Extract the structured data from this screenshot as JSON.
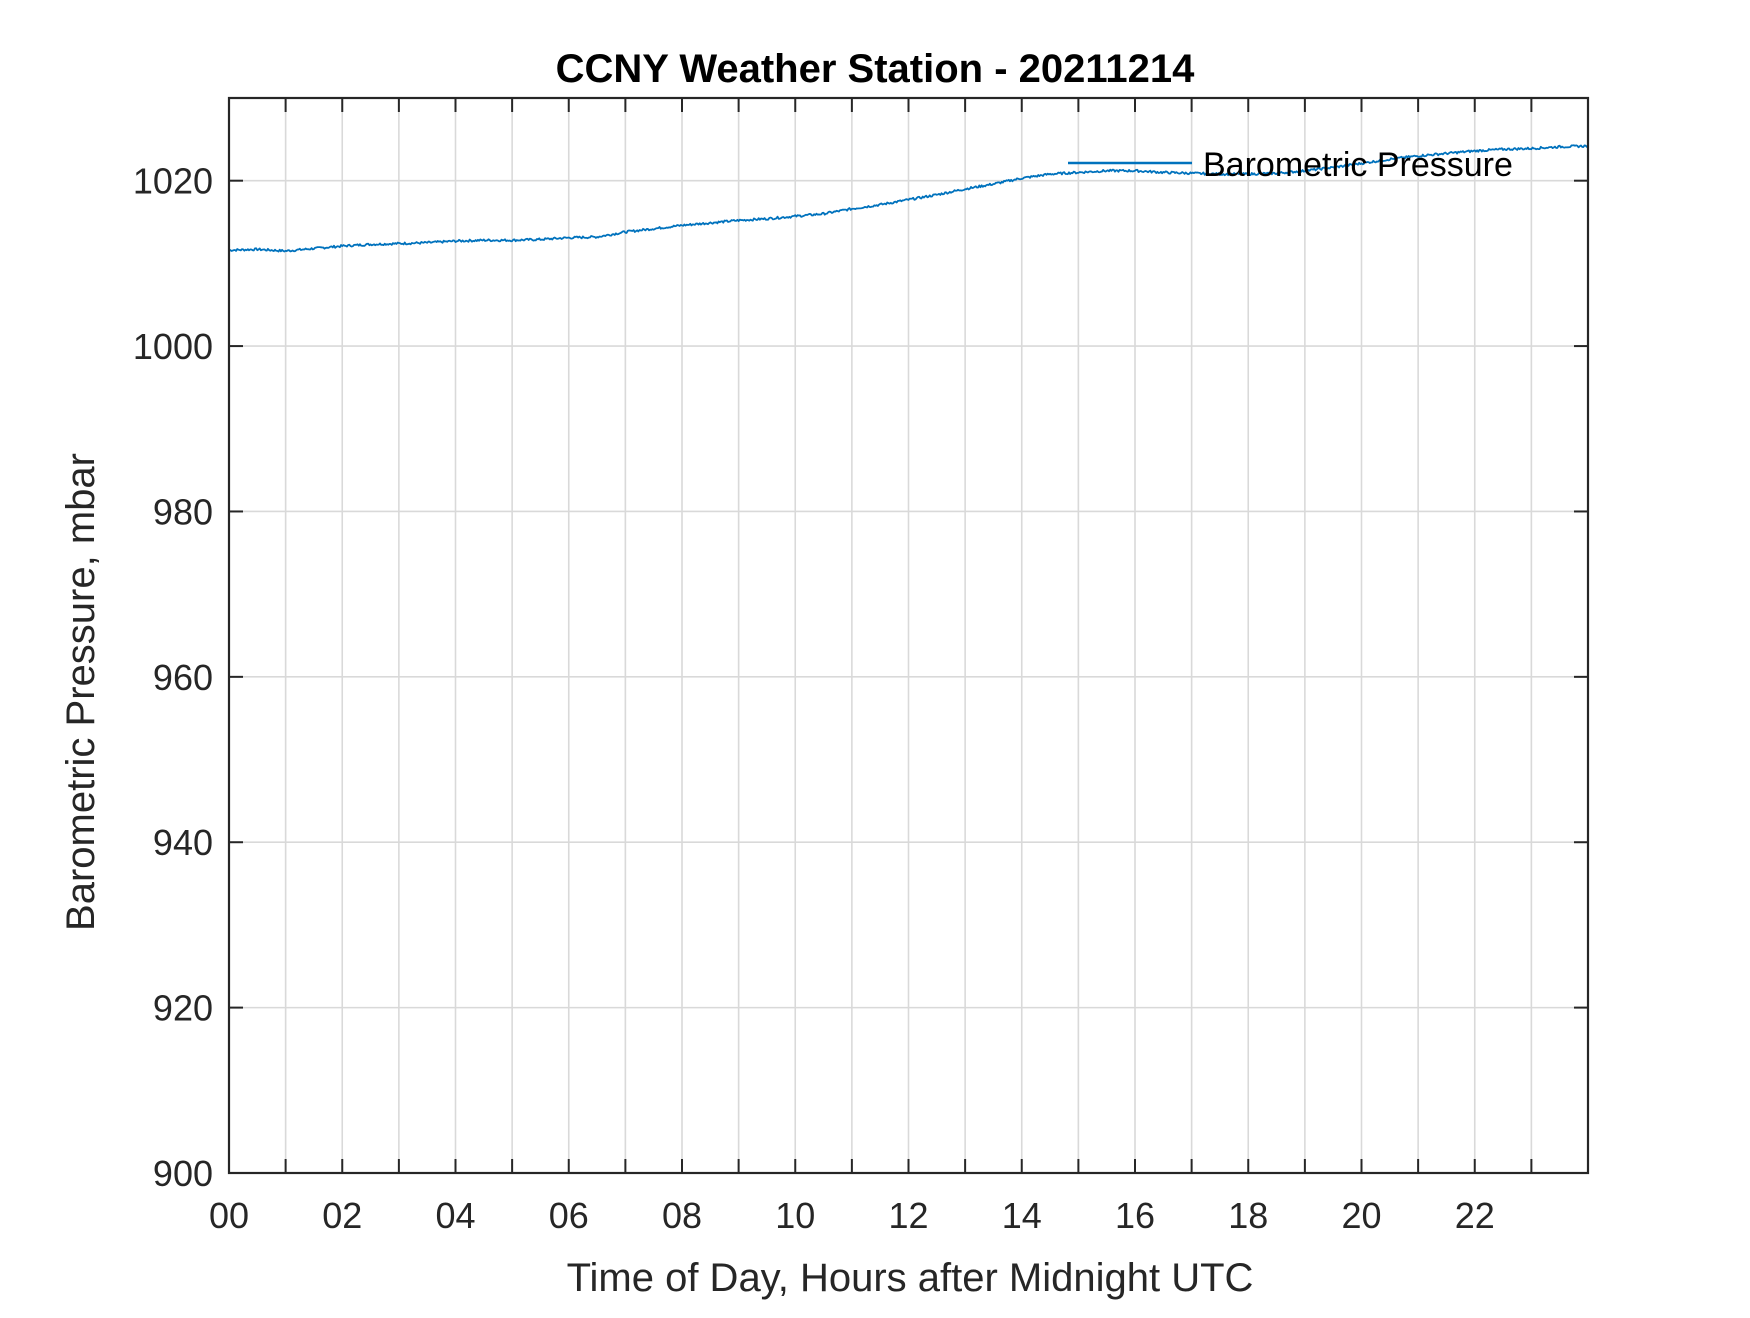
{
  "chart_data": {
    "type": "line",
    "title": "CCNY Weather Station - 20211214",
    "xlabel": "Time of Day, Hours after Midnight UTC",
    "ylabel": "Barometric Pressure, mbar",
    "xlim": [
      0,
      24
    ],
    "ylim": [
      900,
      1030
    ],
    "x_tick_values": [
      0,
      2,
      4,
      6,
      8,
      10,
      12,
      14,
      16,
      18,
      20,
      22
    ],
    "x_tick_labels": [
      "00",
      "02",
      "04",
      "06",
      "08",
      "10",
      "12",
      "14",
      "16",
      "18",
      "20",
      "22"
    ],
    "x_minor_ticks_every": 1,
    "y_tick_values": [
      900,
      920,
      940,
      960,
      980,
      1000,
      1020
    ],
    "y_tick_labels": [
      "900",
      "920",
      "940",
      "960",
      "980",
      "1000",
      "1020"
    ],
    "grid": true,
    "legend_position": "top-right",
    "series": [
      {
        "name": "Barometric Pressure",
        "color": "#0072BD",
        "x": [
          0,
          0.5,
          1,
          1.5,
          2,
          2.5,
          3,
          3.5,
          4,
          4.5,
          5,
          5.5,
          6,
          6.5,
          7,
          7.5,
          8,
          8.5,
          9,
          9.5,
          10,
          10.5,
          11,
          11.5,
          12,
          12.5,
          13,
          13.5,
          14,
          14.5,
          15,
          15.5,
          16,
          16.5,
          17,
          17.5,
          18,
          18.5,
          19,
          19.5,
          20,
          20.5,
          21,
          21.5,
          22,
          22.5,
          23,
          23.5,
          24
        ],
        "y": [
          1011.6,
          1011.7,
          1011.5,
          1011.8,
          1012.1,
          1012.3,
          1012.4,
          1012.5,
          1012.7,
          1012.8,
          1012.8,
          1012.9,
          1013.1,
          1013.2,
          1013.8,
          1014.2,
          1014.6,
          1014.9,
          1015.2,
          1015.4,
          1015.7,
          1016.0,
          1016.6,
          1017.1,
          1017.7,
          1018.3,
          1019.0,
          1019.6,
          1020.3,
          1020.8,
          1021.0,
          1021.2,
          1021.2,
          1021.0,
          1020.9,
          1020.8,
          1020.8,
          1020.9,
          1021.2,
          1021.6,
          1022.1,
          1022.6,
          1023.0,
          1023.3,
          1023.6,
          1023.8,
          1023.9,
          1024.1,
          1024.2
        ]
      }
    ]
  }
}
